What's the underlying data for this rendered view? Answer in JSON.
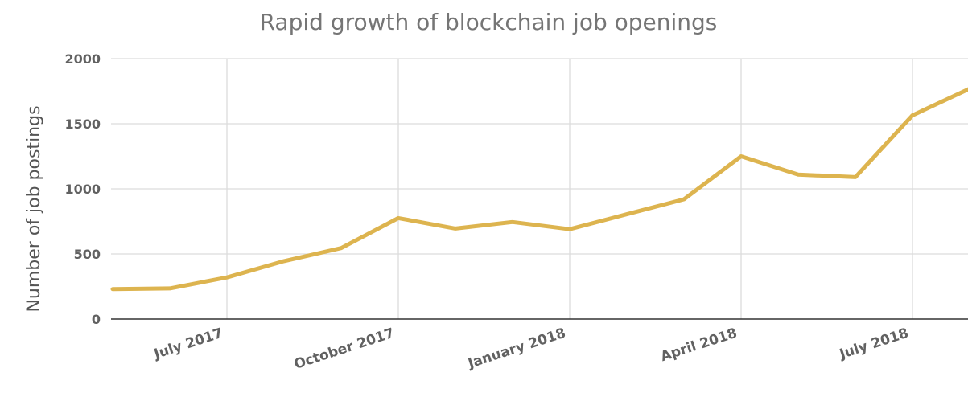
{
  "chart_data": {
    "type": "line",
    "title": "Rapid growth of blockchain job openings",
    "xlabel": "",
    "ylabel": "Number of job postings",
    "ylim": [
      0,
      2000
    ],
    "yticks": [
      "2000",
      "1500",
      "1000",
      "500",
      "0"
    ],
    "xticks": [
      {
        "label": "July 2017",
        "x": "2017-07"
      },
      {
        "label": "October 2017",
        "x": "2017-10"
      },
      {
        "label": "January 2018",
        "x": "2018-01"
      },
      {
        "label": "April 2018",
        "x": "2018-04"
      },
      {
        "label": "July 2018",
        "x": "2018-07"
      }
    ],
    "grid": true,
    "series": [
      {
        "color": "#DDB44F",
        "points": [
          {
            "x": "2017-05",
            "y": 230
          },
          {
            "x": "2017-06",
            "y": 235
          },
          {
            "x": "2017-07",
            "y": 320
          },
          {
            "x": "2017-08",
            "y": 445
          },
          {
            "x": "2017-09",
            "y": 545
          },
          {
            "x": "2017-10",
            "y": 775
          },
          {
            "x": "2017-11",
            "y": 695
          },
          {
            "x": "2017-12",
            "y": 745
          },
          {
            "x": "2018-01",
            "y": 690
          },
          {
            "x": "2018-02",
            "y": 805
          },
          {
            "x": "2018-03",
            "y": 920
          },
          {
            "x": "2018-04",
            "y": 1250
          },
          {
            "x": "2018-05",
            "y": 1110
          },
          {
            "x": "2018-06",
            "y": 1090
          },
          {
            "x": "2018-07",
            "y": 1565
          },
          {
            "x": "2018-08",
            "y": 1770
          }
        ]
      }
    ]
  }
}
